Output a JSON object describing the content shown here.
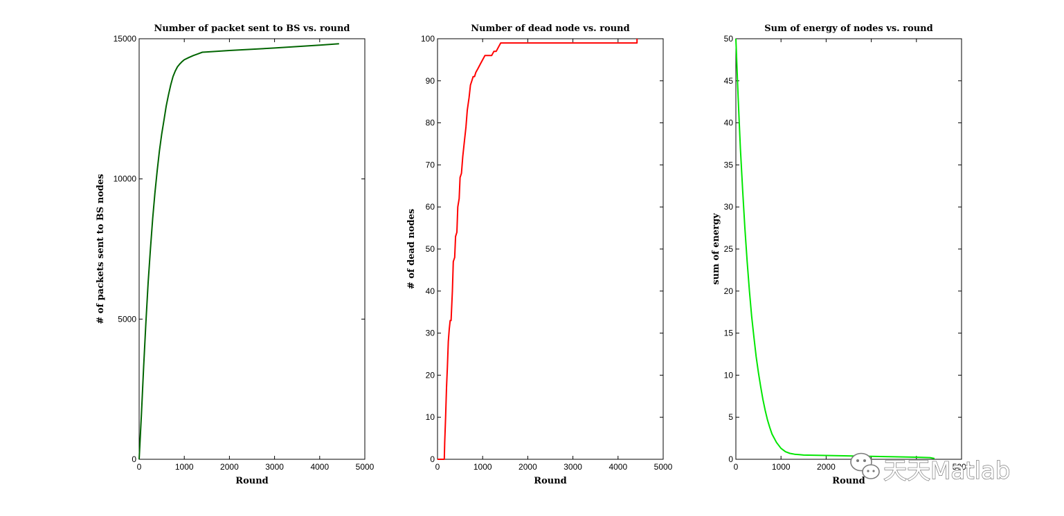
{
  "chart_data": [
    {
      "type": "line",
      "title": "Number of packet sent to BS vs. round",
      "xlabel": "Round",
      "ylabel": "# of packets sent to BS nodes",
      "xlim": [
        0,
        5000
      ],
      "ylim": [
        0,
        15000
      ],
      "xticks": [
        0,
        1000,
        2000,
        3000,
        4000,
        5000
      ],
      "yticks": [
        0,
        5000,
        10000,
        15000
      ],
      "grid": false,
      "color": "#006400",
      "series": [
        {
          "x": [
            0,
            50,
            100,
            150,
            200,
            250,
            300,
            350,
            400,
            450,
            500,
            550,
            600,
            650,
            700,
            750,
            800,
            850,
            900,
            950,
            1000,
            1100,
            1200,
            1300,
            1400,
            1500,
            2000,
            3000,
            4000,
            4430
          ],
          "y": [
            0,
            1600,
            3300,
            4900,
            6300,
            7500,
            8600,
            9500,
            10300,
            11000,
            11600,
            12100,
            12600,
            13000,
            13350,
            13650,
            13850,
            14000,
            14100,
            14180,
            14250,
            14330,
            14400,
            14460,
            14520,
            14530,
            14580,
            14670,
            14770,
            14820
          ]
        }
      ]
    },
    {
      "type": "line",
      "title": "Number of dead node vs. round",
      "xlabel": "Round",
      "ylabel": "# of dead nodes",
      "xlim": [
        0,
        5000
      ],
      "ylim": [
        0,
        100
      ],
      "xticks": [
        0,
        1000,
        2000,
        3000,
        4000,
        5000
      ],
      "yticks": [
        0,
        10,
        20,
        30,
        40,
        50,
        60,
        70,
        80,
        90,
        100
      ],
      "grid": false,
      "color": "#ff0000",
      "series": [
        {
          "x": [
            0,
            150,
            160,
            180,
            200,
            220,
            240,
            260,
            280,
            300,
            330,
            350,
            380,
            400,
            430,
            450,
            480,
            500,
            530,
            560,
            600,
            630,
            660,
            700,
            730,
            760,
            790,
            820,
            850,
            900,
            950,
            1000,
            1050,
            1100,
            1200,
            1250,
            1300,
            1350,
            1400,
            4420,
            4420
          ],
          "y": [
            0,
            0,
            4,
            10,
            17,
            22,
            28,
            31,
            33,
            33,
            40,
            47,
            48,
            53,
            54,
            60,
            62,
            67,
            68,
            72,
            76,
            79,
            83,
            86,
            89,
            90,
            91,
            91,
            92,
            93,
            94,
            95,
            96,
            96,
            96,
            97,
            97,
            98,
            99,
            99,
            100
          ]
        }
      ]
    },
    {
      "type": "line",
      "title": "Sum of energy of nodes vs. round",
      "xlabel": "Round",
      "ylabel": "sum of energy",
      "xlim": [
        0,
        5000
      ],
      "ylim": [
        0,
        50
      ],
      "xticks": [
        0,
        1000,
        2000,
        3000,
        4000,
        5000
      ],
      "xticklabels": [
        "0",
        "1000",
        "2000",
        "",
        "",
        "5000"
      ],
      "yticks": [
        0,
        5,
        10,
        15,
        20,
        25,
        30,
        35,
        40,
        45,
        50
      ],
      "grid": false,
      "color": "#00e600",
      "series": [
        {
          "x": [
            0,
            50,
            100,
            150,
            200,
            250,
            300,
            350,
            400,
            450,
            500,
            550,
            600,
            650,
            700,
            750,
            800,
            900,
            1000,
            1100,
            1200,
            1300,
            1400,
            1500,
            2000,
            2500,
            3000,
            3500,
            4000,
            4300,
            4400
          ],
          "y": [
            50,
            43,
            37,
            32,
            27.5,
            23.5,
            20,
            17,
            14.5,
            12.2,
            10.3,
            8.6,
            7.1,
            5.8,
            4.7,
            3.8,
            3.0,
            2.0,
            1.3,
            0.9,
            0.7,
            0.6,
            0.55,
            0.5,
            0.45,
            0.4,
            0.35,
            0.3,
            0.25,
            0.2,
            0.1
          ]
        }
      ]
    }
  ],
  "watermark": {
    "text": "天天Matlab",
    "icon": "wechat-icon"
  }
}
